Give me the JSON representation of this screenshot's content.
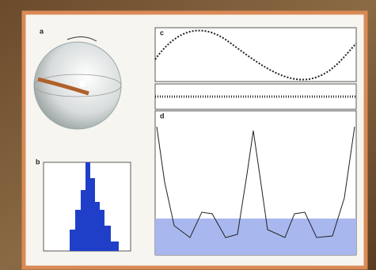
{
  "panels": {
    "a": "a",
    "b": "b",
    "c": "c",
    "d": "d"
  }
}
